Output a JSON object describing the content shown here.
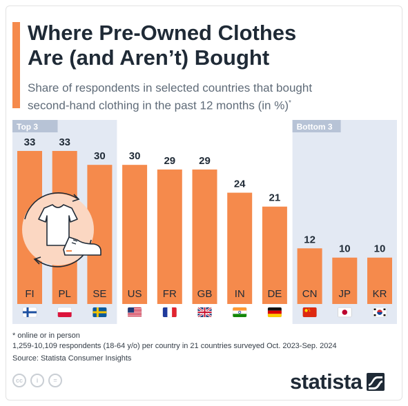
{
  "header": {
    "title_line1": "Where Pre-Owned Clothes",
    "title_line2": "Are (and Aren’t) Bought",
    "subtitle_line1": "Share of respondents in selected countries that bought",
    "subtitle_line2": "second-hand clothing in the past 12 months (in %)",
    "subtitle_mark": "*"
  },
  "colors": {
    "bar": "#f58a4c",
    "highlight_panel": "#e3e9f3",
    "highlight_label": "#b7c3d6",
    "title": "#1f2a36",
    "subtitle": "#5f6b78"
  },
  "chart_data": {
    "type": "bar",
    "categories": [
      "FI",
      "PL",
      "SE",
      "US",
      "FR",
      "GB",
      "IN",
      "DE",
      "CN",
      "JP",
      "KR"
    ],
    "values": [
      33,
      33,
      30,
      30,
      29,
      29,
      24,
      21,
      12,
      10,
      10
    ],
    "flags": [
      "finland-flag-icon",
      "poland-flag-icon",
      "sweden-flag-icon",
      "usa-flag-icon",
      "france-flag-icon",
      "uk-flag-icon",
      "india-flag-icon",
      "germany-flag-icon",
      "china-flag-icon",
      "japan-flag-icon",
      "south-korea-flag-icon"
    ],
    "ylim": [
      0,
      33
    ],
    "groups": [
      {
        "label": "Top 3",
        "start": 0,
        "end": 2
      },
      {
        "label": "Bottom 3",
        "start": 8,
        "end": 10
      }
    ],
    "illustration": "second-hand-clothing-icon"
  },
  "footer": {
    "note": "* online or in person",
    "sample": "1,259-10,109 respondents (18-64 y/o) per country in 21 countries surveyed Oct. 2023-Sep. 2024",
    "source": "Source: Statista Consumer Insights",
    "license_icons": [
      "cc",
      "i",
      "="
    ],
    "brand": "statista"
  }
}
